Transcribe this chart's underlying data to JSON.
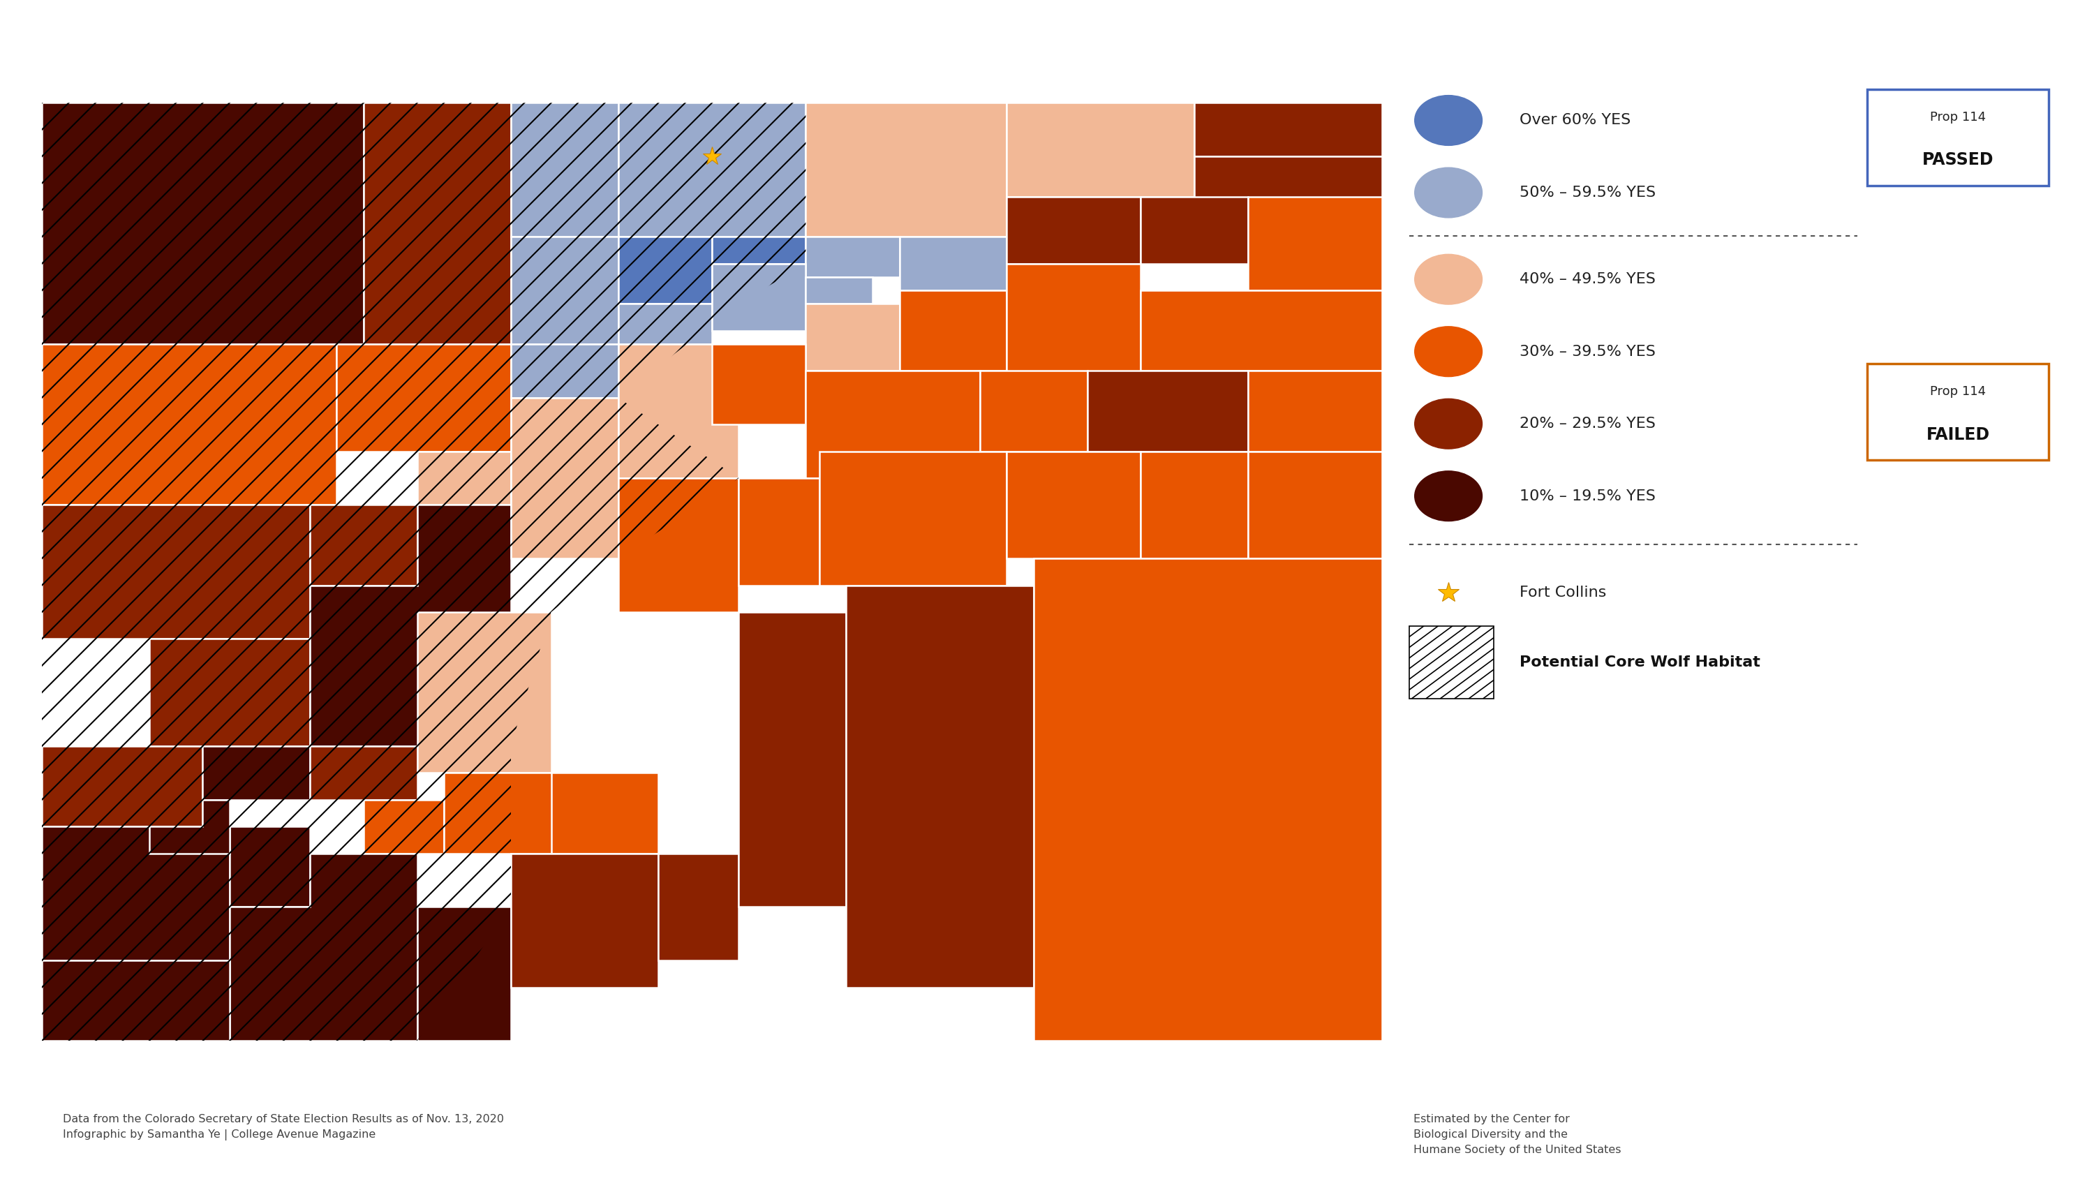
{
  "background_color": "#ffffff",
  "colors": {
    "over60yes": "#5577bb",
    "c50to59yes": "#99aacc",
    "c40to49yes": "#f2b896",
    "c30to39yes": "#e85500",
    "c20to29yes": "#8b2200",
    "c10to19yes": "#4a0800"
  },
  "legend_labels": [
    "Over 60% YES",
    "50% – 59.5% YES",
    "40% – 49.5% YES",
    "30% – 39.5% YES",
    "20% – 29.5% YES",
    "10% – 19.5% YES"
  ],
  "footer_left": "Data from the Colorado Secretary of State Election Results as of Nov. 13, 2020\nInfographic by Samantha Ye | College Avenue Magazine",
  "footer_right": "Estimated by the Center for\nBiological Diversity and the\nHumane Society of the United States",
  "fort_collins_label": "Fort Collins",
  "habitat_label": "Potential Core Wolf Habitat",
  "passed_border": "#4466bb",
  "failed_border": "#cc6600"
}
